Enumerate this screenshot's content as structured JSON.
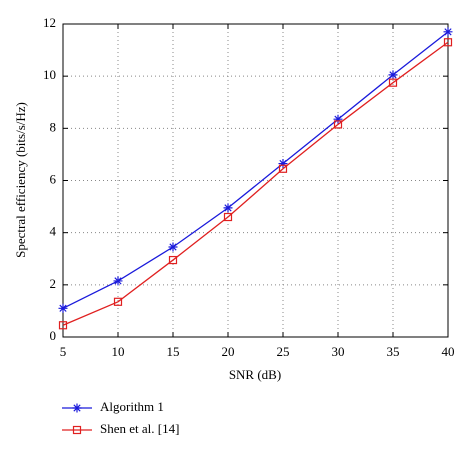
{
  "chart_data": {
    "type": "line",
    "x_label": "SNR (dB)",
    "y_label": "Spectral efficiency (bits/s/Hz)",
    "x": [
      5,
      10,
      15,
      20,
      25,
      30,
      35,
      40
    ],
    "xlim": [
      5,
      40
    ],
    "xticks": [
      5,
      10,
      15,
      20,
      25,
      30,
      35,
      40
    ],
    "ylim": [
      0,
      12
    ],
    "yticks": [
      0,
      2,
      4,
      6,
      8,
      10,
      12
    ],
    "grid": true,
    "legend": "bottom-left",
    "series": [
      {
        "name": "Algorithm 1",
        "color": "#1a1adb",
        "marker": "star",
        "values": [
          1.1,
          2.15,
          3.45,
          4.95,
          6.65,
          8.35,
          10.05,
          11.7
        ]
      },
      {
        "name": "Shen et al. [14]",
        "color": "#e02020",
        "marker": "square",
        "values": [
          0.45,
          1.35,
          2.95,
          4.6,
          6.45,
          8.15,
          9.75,
          11.3
        ]
      }
    ]
  }
}
